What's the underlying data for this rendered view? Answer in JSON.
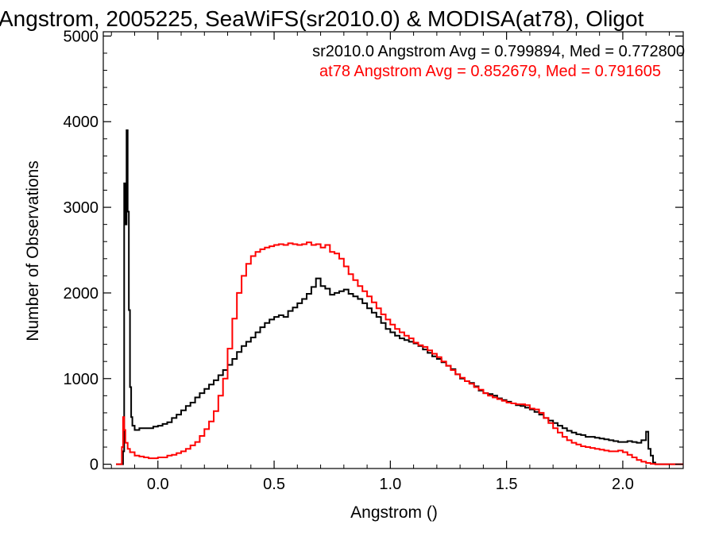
{
  "chart_data": {
    "type": "line",
    "title": "Angstrom, 2005225, SeaWiFS(sr2010.0) & MODISA(at78), Oligot",
    "xlabel": "Angstrom ()",
    "ylabel": "Number of Observations",
    "xlim": [
      -0.235,
      2.26
    ],
    "ylim": [
      -50,
      5050
    ],
    "xticks": [
      0.0,
      0.5,
      1.0,
      1.5,
      2.0
    ],
    "xtick_labels": [
      "0.0",
      "0.5",
      "1.0",
      "1.5",
      "2.0"
    ],
    "yticks": [
      0,
      1000,
      2000,
      3000,
      4000,
      5000
    ],
    "ytick_labels": [
      "0",
      "1000",
      "2000",
      "3000",
      "4000",
      "5000"
    ],
    "step": true,
    "grid": false,
    "annotations": [
      {
        "text": "sr2010.0 Angstrom Avg = 0.799894, Med = 0.772800",
        "color": "#000000"
      },
      {
        "text": "at78 Angstrom Avg = 0.852679, Med = 0.791605",
        "color": "#ff0000"
      }
    ],
    "series": [
      {
        "color": "#000000",
        "points": [
          [
            -0.18,
            0
          ],
          [
            -0.16,
            0
          ],
          [
            -0.15,
            150
          ],
          [
            -0.145,
            3280
          ],
          [
            -0.14,
            2800
          ],
          [
            -0.135,
            3900
          ],
          [
            -0.13,
            2950
          ],
          [
            -0.125,
            1800
          ],
          [
            -0.12,
            900
          ],
          [
            -0.115,
            550
          ],
          [
            -0.11,
            450
          ],
          [
            -0.1,
            400
          ],
          [
            -0.08,
            420
          ],
          [
            -0.05,
            420
          ],
          [
            -0.02,
            440
          ],
          [
            0.0,
            450
          ],
          [
            0.02,
            470
          ],
          [
            0.04,
            490
          ],
          [
            0.06,
            540
          ],
          [
            0.08,
            580
          ],
          [
            0.1,
            630
          ],
          [
            0.12,
            680
          ],
          [
            0.14,
            720
          ],
          [
            0.16,
            780
          ],
          [
            0.18,
            830
          ],
          [
            0.2,
            880
          ],
          [
            0.22,
            930
          ],
          [
            0.24,
            980
          ],
          [
            0.26,
            1040
          ],
          [
            0.28,
            1100
          ],
          [
            0.3,
            1160
          ],
          [
            0.32,
            1230
          ],
          [
            0.34,
            1310
          ],
          [
            0.36,
            1380
          ],
          [
            0.38,
            1430
          ],
          [
            0.4,
            1480
          ],
          [
            0.42,
            1540
          ],
          [
            0.44,
            1600
          ],
          [
            0.46,
            1650
          ],
          [
            0.48,
            1690
          ],
          [
            0.5,
            1720
          ],
          [
            0.52,
            1740
          ],
          [
            0.54,
            1720
          ],
          [
            0.56,
            1790
          ],
          [
            0.58,
            1830
          ],
          [
            0.6,
            1880
          ],
          [
            0.62,
            1930
          ],
          [
            0.64,
            1990
          ],
          [
            0.66,
            2070
          ],
          [
            0.68,
            2170
          ],
          [
            0.7,
            2080
          ],
          [
            0.72,
            2050
          ],
          [
            0.74,
            1980
          ],
          [
            0.76,
            2000
          ],
          [
            0.78,
            2020
          ],
          [
            0.8,
            2040
          ],
          [
            0.82,
            1990
          ],
          [
            0.84,
            1960
          ],
          [
            0.86,
            1930
          ],
          [
            0.88,
            1880
          ],
          [
            0.9,
            1820
          ],
          [
            0.92,
            1770
          ],
          [
            0.94,
            1720
          ],
          [
            0.96,
            1650
          ],
          [
            0.98,
            1580
          ],
          [
            1.0,
            1540
          ],
          [
            1.02,
            1500
          ],
          [
            1.04,
            1470
          ],
          [
            1.06,
            1450
          ],
          [
            1.08,
            1430
          ],
          [
            1.1,
            1410
          ],
          [
            1.12,
            1380
          ],
          [
            1.14,
            1340
          ],
          [
            1.16,
            1300
          ],
          [
            1.18,
            1260
          ],
          [
            1.2,
            1230
          ],
          [
            1.22,
            1190
          ],
          [
            1.24,
            1150
          ],
          [
            1.26,
            1110
          ],
          [
            1.28,
            1050
          ],
          [
            1.3,
            1000
          ],
          [
            1.32,
            970
          ],
          [
            1.34,
            950
          ],
          [
            1.36,
            910
          ],
          [
            1.38,
            860
          ],
          [
            1.4,
            830
          ],
          [
            1.42,
            820
          ],
          [
            1.44,
            800
          ],
          [
            1.46,
            770
          ],
          [
            1.48,
            750
          ],
          [
            1.5,
            730
          ],
          [
            1.52,
            710
          ],
          [
            1.54,
            690
          ],
          [
            1.56,
            680
          ],
          [
            1.58,
            660
          ],
          [
            1.6,
            640
          ],
          [
            1.62,
            610
          ],
          [
            1.64,
            580
          ],
          [
            1.66,
            540
          ],
          [
            1.68,
            510
          ],
          [
            1.7,
            480
          ],
          [
            1.72,
            450
          ],
          [
            1.74,
            420
          ],
          [
            1.76,
            390
          ],
          [
            1.78,
            370
          ],
          [
            1.8,
            350
          ],
          [
            1.82,
            340
          ],
          [
            1.84,
            320
          ],
          [
            1.86,
            320
          ],
          [
            1.88,
            310
          ],
          [
            1.9,
            300
          ],
          [
            1.92,
            290
          ],
          [
            1.94,
            280
          ],
          [
            1.96,
            270
          ],
          [
            1.98,
            260
          ],
          [
            2.0,
            260
          ],
          [
            2.02,
            270
          ],
          [
            2.04,
            260
          ],
          [
            2.06,
            250
          ],
          [
            2.08,
            280
          ],
          [
            2.1,
            380
          ],
          [
            2.11,
            180
          ],
          [
            2.12,
            100
          ],
          [
            2.13,
            20
          ],
          [
            2.14,
            0
          ],
          [
            2.26,
            0
          ]
        ]
      },
      {
        "color": "#ff0000",
        "points": [
          [
            -0.18,
            0
          ],
          [
            -0.16,
            0
          ],
          [
            -0.155,
            200
          ],
          [
            -0.15,
            550
          ],
          [
            -0.145,
            400
          ],
          [
            -0.14,
            250
          ],
          [
            -0.13,
            180
          ],
          [
            -0.12,
            140
          ],
          [
            -0.1,
            100
          ],
          [
            -0.08,
            90
          ],
          [
            -0.06,
            80
          ],
          [
            -0.04,
            70
          ],
          [
            -0.02,
            70
          ],
          [
            0.0,
            80
          ],
          [
            0.02,
            80
          ],
          [
            0.04,
            100
          ],
          [
            0.06,
            110
          ],
          [
            0.08,
            130
          ],
          [
            0.1,
            150
          ],
          [
            0.12,
            180
          ],
          [
            0.14,
            220
          ],
          [
            0.16,
            260
          ],
          [
            0.18,
            330
          ],
          [
            0.2,
            410
          ],
          [
            0.22,
            500
          ],
          [
            0.24,
            620
          ],
          [
            0.26,
            800
          ],
          [
            0.28,
            1000
          ],
          [
            0.3,
            1350
          ],
          [
            0.32,
            1700
          ],
          [
            0.34,
            2000
          ],
          [
            0.36,
            2200
          ],
          [
            0.38,
            2340
          ],
          [
            0.4,
            2430
          ],
          [
            0.42,
            2480
          ],
          [
            0.44,
            2510
          ],
          [
            0.46,
            2530
          ],
          [
            0.48,
            2545
          ],
          [
            0.5,
            2560
          ],
          [
            0.52,
            2570
          ],
          [
            0.54,
            2560
          ],
          [
            0.56,
            2580
          ],
          [
            0.58,
            2570
          ],
          [
            0.6,
            2560
          ],
          [
            0.62,
            2570
          ],
          [
            0.64,
            2590
          ],
          [
            0.66,
            2560
          ],
          [
            0.68,
            2570
          ],
          [
            0.7,
            2530
          ],
          [
            0.72,
            2560
          ],
          [
            0.74,
            2480
          ],
          [
            0.76,
            2460
          ],
          [
            0.78,
            2400
          ],
          [
            0.8,
            2310
          ],
          [
            0.82,
            2220
          ],
          [
            0.84,
            2150
          ],
          [
            0.86,
            2080
          ],
          [
            0.88,
            2020
          ],
          [
            0.9,
            1960
          ],
          [
            0.92,
            1890
          ],
          [
            0.94,
            1820
          ],
          [
            0.96,
            1750
          ],
          [
            0.98,
            1690
          ],
          [
            1.0,
            1630
          ],
          [
            1.02,
            1580
          ],
          [
            1.04,
            1540
          ],
          [
            1.06,
            1500
          ],
          [
            1.08,
            1470
          ],
          [
            1.1,
            1420
          ],
          [
            1.12,
            1390
          ],
          [
            1.14,
            1370
          ],
          [
            1.16,
            1330
          ],
          [
            1.18,
            1290
          ],
          [
            1.2,
            1250
          ],
          [
            1.22,
            1200
          ],
          [
            1.24,
            1150
          ],
          [
            1.26,
            1100
          ],
          [
            1.28,
            1050
          ],
          [
            1.3,
            1010
          ],
          [
            1.32,
            970
          ],
          [
            1.34,
            940
          ],
          [
            1.36,
            900
          ],
          [
            1.38,
            870
          ],
          [
            1.4,
            830
          ],
          [
            1.42,
            800
          ],
          [
            1.44,
            780
          ],
          [
            1.46,
            760
          ],
          [
            1.48,
            740
          ],
          [
            1.5,
            720
          ],
          [
            1.52,
            710
          ],
          [
            1.54,
            700
          ],
          [
            1.56,
            700
          ],
          [
            1.58,
            690
          ],
          [
            1.6,
            650
          ],
          [
            1.62,
            640
          ],
          [
            1.64,
            600
          ],
          [
            1.66,
            540
          ],
          [
            1.68,
            480
          ],
          [
            1.7,
            420
          ],
          [
            1.72,
            370
          ],
          [
            1.74,
            320
          ],
          [
            1.76,
            280
          ],
          [
            1.78,
            250
          ],
          [
            1.8,
            230
          ],
          [
            1.82,
            210
          ],
          [
            1.84,
            200
          ],
          [
            1.86,
            190
          ],
          [
            1.88,
            180
          ],
          [
            1.9,
            170
          ],
          [
            1.92,
            160
          ],
          [
            1.94,
            150
          ],
          [
            1.96,
            150
          ],
          [
            1.98,
            160
          ],
          [
            2.0,
            140
          ],
          [
            2.02,
            110
          ],
          [
            2.04,
            80
          ],
          [
            2.06,
            50
          ],
          [
            2.08,
            30
          ],
          [
            2.1,
            15
          ],
          [
            2.12,
            5
          ],
          [
            2.14,
            0
          ],
          [
            2.26,
            0
          ]
        ]
      }
    ]
  }
}
